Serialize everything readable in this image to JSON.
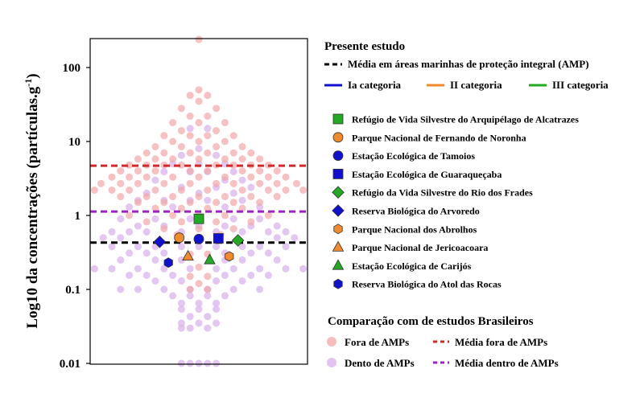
{
  "chart_data": {
    "type": "scatter",
    "ylabel": "Log10 da concentrações (partículas.g",
    "ylabel_superscript": "-1",
    "ylabel_close": ")",
    "yscale": "log",
    "ylim": [
      0.01,
      250
    ],
    "y_ticks": [
      {
        "value": 0.01,
        "label": "0.01"
      },
      {
        "value": 0.1,
        "label": "0.1"
      },
      {
        "value": 1,
        "label": "1"
      },
      {
        "value": 10,
        "label": "10"
      },
      {
        "value": 100,
        "label": "100"
      }
    ],
    "colors": {
      "fora": "#f4a6a6",
      "dentro": "#d9b3ee",
      "media_fora": "#d62728",
      "media_dentro": "#a020c8",
      "media_integral": "#000000",
      "cat_ia": "#1010d0",
      "cat_ii": "#f08a2a",
      "cat_iii": "#22aa22"
    },
    "mean_lines": [
      {
        "key": "media_fora",
        "value": 4.7
      },
      {
        "key": "media_dentro",
        "value": 1.13
      },
      {
        "key": "media_integral",
        "value": 0.43
      }
    ],
    "present_study": [
      {
        "name": "Refúgio de Vida Silvestre do Arquipélago de Alcatrazes",
        "marker": "square",
        "category": "cat_iii",
        "x": 0.5,
        "y": 0.9
      },
      {
        "name": "Parque Nacional de Fernando de Noronha",
        "marker": "circle",
        "category": "cat_ii",
        "x": 0.41,
        "y": 0.5
      },
      {
        "name": "Estação Ecológica de Tamoios",
        "marker": "circle",
        "category": "cat_ia",
        "x": 0.5,
        "y": 0.48
      },
      {
        "name": "Estação Ecológica de Guaraqueçaba",
        "marker": "square",
        "category": "cat_ia",
        "x": 0.59,
        "y": 0.49
      },
      {
        "name": "Refúgio da Vida Silvestre do Rio dos Frades",
        "marker": "diamond",
        "category": "cat_iii",
        "x": 0.68,
        "y": 0.46
      },
      {
        "name": "Reserva Biológica do Arvoredo",
        "marker": "diamond",
        "category": "cat_ia",
        "x": 0.32,
        "y": 0.44
      },
      {
        "name": "Parque Nacional dos Abrolhos",
        "marker": "hexagon",
        "category": "cat_ii",
        "x": 0.64,
        "y": 0.28
      },
      {
        "name": "Parque Nacional de Jericoacoara",
        "marker": "triangle",
        "category": "cat_ii",
        "x": 0.45,
        "y": 0.28
      },
      {
        "name": "Estação  Ecológica de Carijós",
        "marker": "triangle",
        "category": "cat_iii",
        "x": 0.55,
        "y": 0.25
      },
      {
        "name": "Reserva Biológica do Atol das Rocas",
        "marker": "hexagon",
        "category": "cat_ia",
        "x": 0.36,
        "y": 0.23
      }
    ],
    "brazilian_studies_fora": [
      {
        "x": 0.5,
        "y": 240
      },
      {
        "x": 0.5,
        "y": 50
      },
      {
        "x": 0.46,
        "y": 42
      },
      {
        "x": 0.54,
        "y": 42
      },
      {
        "x": 0.5,
        "y": 35
      },
      {
        "x": 0.42,
        "y": 28
      },
      {
        "x": 0.58,
        "y": 28
      },
      {
        "x": 0.46,
        "y": 22
      },
      {
        "x": 0.54,
        "y": 22
      },
      {
        "x": 0.38,
        "y": 18
      },
      {
        "x": 0.5,
        "y": 18
      },
      {
        "x": 0.62,
        "y": 18
      },
      {
        "x": 0.42,
        "y": 14
      },
      {
        "x": 0.58,
        "y": 14
      },
      {
        "x": 0.34,
        "y": 12
      },
      {
        "x": 0.46,
        "y": 12
      },
      {
        "x": 0.54,
        "y": 12
      },
      {
        "x": 0.66,
        "y": 12
      },
      {
        "x": 0.38,
        "y": 10
      },
      {
        "x": 0.5,
        "y": 10
      },
      {
        "x": 0.62,
        "y": 10
      },
      {
        "x": 0.3,
        "y": 8.5
      },
      {
        "x": 0.42,
        "y": 8.5
      },
      {
        "x": 0.58,
        "y": 8.5
      },
      {
        "x": 0.7,
        "y": 8.5
      },
      {
        "x": 0.26,
        "y": 7
      },
      {
        "x": 0.34,
        "y": 7
      },
      {
        "x": 0.46,
        "y": 7
      },
      {
        "x": 0.54,
        "y": 7
      },
      {
        "x": 0.66,
        "y": 7
      },
      {
        "x": 0.74,
        "y": 7
      },
      {
        "x": 0.22,
        "y": 5.8
      },
      {
        "x": 0.3,
        "y": 5.8
      },
      {
        "x": 0.38,
        "y": 5.8
      },
      {
        "x": 0.5,
        "y": 5.8
      },
      {
        "x": 0.62,
        "y": 5.8
      },
      {
        "x": 0.7,
        "y": 5.8
      },
      {
        "x": 0.78,
        "y": 5.8
      },
      {
        "x": 0.18,
        "y": 4.8
      },
      {
        "x": 0.26,
        "y": 4.8
      },
      {
        "x": 0.34,
        "y": 4.8
      },
      {
        "x": 0.42,
        "y": 4.8
      },
      {
        "x": 0.58,
        "y": 4.8
      },
      {
        "x": 0.66,
        "y": 4.8
      },
      {
        "x": 0.74,
        "y": 4.8
      },
      {
        "x": 0.82,
        "y": 4.8
      },
      {
        "x": 0.14,
        "y": 4
      },
      {
        "x": 0.22,
        "y": 4
      },
      {
        "x": 0.3,
        "y": 4
      },
      {
        "x": 0.46,
        "y": 4
      },
      {
        "x": 0.54,
        "y": 4
      },
      {
        "x": 0.7,
        "y": 4
      },
      {
        "x": 0.78,
        "y": 4
      },
      {
        "x": 0.86,
        "y": 4
      },
      {
        "x": 0.1,
        "y": 3.3
      },
      {
        "x": 0.18,
        "y": 3.3
      },
      {
        "x": 0.26,
        "y": 3.3
      },
      {
        "x": 0.38,
        "y": 3.3
      },
      {
        "x": 0.5,
        "y": 3.3
      },
      {
        "x": 0.62,
        "y": 3.3
      },
      {
        "x": 0.74,
        "y": 3.3
      },
      {
        "x": 0.82,
        "y": 3.3
      },
      {
        "x": 0.9,
        "y": 3.3
      },
      {
        "x": 0.05,
        "y": 2.7
      },
      {
        "x": 0.14,
        "y": 2.7
      },
      {
        "x": 0.22,
        "y": 2.7
      },
      {
        "x": 0.34,
        "y": 2.7
      },
      {
        "x": 0.46,
        "y": 2.7
      },
      {
        "x": 0.58,
        "y": 2.7
      },
      {
        "x": 0.66,
        "y": 2.7
      },
      {
        "x": 0.78,
        "y": 2.7
      },
      {
        "x": 0.86,
        "y": 2.7
      },
      {
        "x": 0.95,
        "y": 2.7
      },
      {
        "x": 0.02,
        "y": 2.2
      },
      {
        "x": 0.1,
        "y": 2.2
      },
      {
        "x": 0.18,
        "y": 2.2
      },
      {
        "x": 0.3,
        "y": 2.2
      },
      {
        "x": 0.42,
        "y": 2.2
      },
      {
        "x": 0.54,
        "y": 2.2
      },
      {
        "x": 0.7,
        "y": 2.2
      },
      {
        "x": 0.82,
        "y": 2.2
      },
      {
        "x": 0.9,
        "y": 2.2
      },
      {
        "x": 0.98,
        "y": 2.2
      },
      {
        "x": 0.14,
        "y": 1.8
      },
      {
        "x": 0.26,
        "y": 1.8
      },
      {
        "x": 0.38,
        "y": 1.8
      },
      {
        "x": 0.5,
        "y": 1.8
      },
      {
        "x": 0.62,
        "y": 1.8
      },
      {
        "x": 0.74,
        "y": 1.8
      },
      {
        "x": 0.86,
        "y": 1.8
      },
      {
        "x": 0.22,
        "y": 1.5
      },
      {
        "x": 0.34,
        "y": 1.5
      },
      {
        "x": 0.46,
        "y": 1.5
      },
      {
        "x": 0.58,
        "y": 1.5
      },
      {
        "x": 0.66,
        "y": 1.5
      },
      {
        "x": 0.78,
        "y": 1.5
      },
      {
        "x": 0.3,
        "y": 1.25
      },
      {
        "x": 0.42,
        "y": 1.25
      },
      {
        "x": 0.54,
        "y": 1.25
      },
      {
        "x": 0.7,
        "y": 1.25
      },
      {
        "x": 0.18,
        "y": 1.0
      },
      {
        "x": 0.38,
        "y": 1.0
      },
      {
        "x": 0.5,
        "y": 1.0
      },
      {
        "x": 0.62,
        "y": 1.0
      },
      {
        "x": 0.82,
        "y": 1.0
      },
      {
        "x": 0.26,
        "y": 0.82
      },
      {
        "x": 0.42,
        "y": 0.82
      },
      {
        "x": 0.58,
        "y": 0.82
      },
      {
        "x": 0.74,
        "y": 0.82
      },
      {
        "x": 0.34,
        "y": 0.66
      },
      {
        "x": 0.5,
        "y": 0.66
      },
      {
        "x": 0.66,
        "y": 0.66
      },
      {
        "x": 0.4,
        "y": 0.55
      },
      {
        "x": 0.6,
        "y": 0.55
      },
      {
        "x": 0.46,
        "y": 0.3
      },
      {
        "x": 0.54,
        "y": 0.3
      },
      {
        "x": 0.5,
        "y": 0.2
      },
      {
        "x": 0.46,
        "y": 0.15
      },
      {
        "x": 0.54,
        "y": 0.15
      },
      {
        "x": 0.5,
        "y": 0.12
      },
      {
        "x": 0.46,
        "y": 0.1
      },
      {
        "x": 0.54,
        "y": 0.1
      }
    ],
    "brazilian_studies_dentro": [
      {
        "x": 0.46,
        "y": 15
      },
      {
        "x": 0.54,
        "y": 15
      },
      {
        "x": 0.5,
        "y": 8
      },
      {
        "x": 0.42,
        "y": 6.5
      },
      {
        "x": 0.58,
        "y": 6.5
      },
      {
        "x": 0.38,
        "y": 5
      },
      {
        "x": 0.5,
        "y": 5
      },
      {
        "x": 0.62,
        "y": 5
      },
      {
        "x": 0.34,
        "y": 3.9
      },
      {
        "x": 0.46,
        "y": 3.9
      },
      {
        "x": 0.54,
        "y": 3.9
      },
      {
        "x": 0.66,
        "y": 3.9
      },
      {
        "x": 0.62,
        "y": 3.0
      },
      {
        "x": 0.7,
        "y": 3.0
      },
      {
        "x": 0.3,
        "y": 3.0
      },
      {
        "x": 0.42,
        "y": 2.4
      },
      {
        "x": 0.58,
        "y": 2.4
      },
      {
        "x": 0.74,
        "y": 2.4
      },
      {
        "x": 0.26,
        "y": 2.0
      },
      {
        "x": 0.5,
        "y": 2.0
      },
      {
        "x": 0.66,
        "y": 2.0
      },
      {
        "x": 0.34,
        "y": 1.6
      },
      {
        "x": 0.46,
        "y": 1.6
      },
      {
        "x": 0.54,
        "y": 1.6
      },
      {
        "x": 0.7,
        "y": 1.6
      },
      {
        "x": 0.22,
        "y": 1.6
      },
      {
        "x": 0.38,
        "y": 1.3
      },
      {
        "x": 0.62,
        "y": 1.3
      },
      {
        "x": 0.78,
        "y": 1.3
      },
      {
        "x": 0.18,
        "y": 1.3
      },
      {
        "x": 0.3,
        "y": 0.9
      },
      {
        "x": 0.46,
        "y": 0.9
      },
      {
        "x": 0.66,
        "y": 0.9
      },
      {
        "x": 0.78,
        "y": 0.9
      },
      {
        "x": 0.14,
        "y": 0.9
      },
      {
        "x": 0.22,
        "y": 0.72
      },
      {
        "x": 0.34,
        "y": 0.72
      },
      {
        "x": 0.5,
        "y": 0.72
      },
      {
        "x": 0.62,
        "y": 0.72
      },
      {
        "x": 0.74,
        "y": 0.72
      },
      {
        "x": 0.86,
        "y": 0.72
      },
      {
        "x": 0.1,
        "y": 0.6
      },
      {
        "x": 0.18,
        "y": 0.6
      },
      {
        "x": 0.26,
        "y": 0.6
      },
      {
        "x": 0.42,
        "y": 0.6
      },
      {
        "x": 0.58,
        "y": 0.6
      },
      {
        "x": 0.7,
        "y": 0.6
      },
      {
        "x": 0.82,
        "y": 0.6
      },
      {
        "x": 0.9,
        "y": 0.6
      },
      {
        "x": 0.06,
        "y": 0.5
      },
      {
        "x": 0.14,
        "y": 0.5
      },
      {
        "x": 0.86,
        "y": 0.5
      },
      {
        "x": 0.94,
        "y": 0.5
      },
      {
        "x": 0.1,
        "y": 0.38
      },
      {
        "x": 0.22,
        "y": 0.38
      },
      {
        "x": 0.3,
        "y": 0.38
      },
      {
        "x": 0.42,
        "y": 0.38
      },
      {
        "x": 0.5,
        "y": 0.38
      },
      {
        "x": 0.58,
        "y": 0.38
      },
      {
        "x": 0.7,
        "y": 0.38
      },
      {
        "x": 0.78,
        "y": 0.38
      },
      {
        "x": 0.9,
        "y": 0.38
      },
      {
        "x": 0.18,
        "y": 0.31
      },
      {
        "x": 0.26,
        "y": 0.31
      },
      {
        "x": 0.34,
        "y": 0.31
      },
      {
        "x": 0.62,
        "y": 0.31
      },
      {
        "x": 0.74,
        "y": 0.31
      },
      {
        "x": 0.82,
        "y": 0.31
      },
      {
        "x": 0.14,
        "y": 0.25
      },
      {
        "x": 0.3,
        "y": 0.25
      },
      {
        "x": 0.42,
        "y": 0.25
      },
      {
        "x": 0.62,
        "y": 0.25
      },
      {
        "x": 0.7,
        "y": 0.25
      },
      {
        "x": 0.86,
        "y": 0.25
      },
      {
        "x": 0.02,
        "y": 0.19
      },
      {
        "x": 0.1,
        "y": 0.19
      },
      {
        "x": 0.22,
        "y": 0.19
      },
      {
        "x": 0.34,
        "y": 0.19
      },
      {
        "x": 0.46,
        "y": 0.19
      },
      {
        "x": 0.58,
        "y": 0.19
      },
      {
        "x": 0.66,
        "y": 0.19
      },
      {
        "x": 0.78,
        "y": 0.19
      },
      {
        "x": 0.9,
        "y": 0.19
      },
      {
        "x": 0.98,
        "y": 0.19
      },
      {
        "x": 0.18,
        "y": 0.155
      },
      {
        "x": 0.26,
        "y": 0.155
      },
      {
        "x": 0.38,
        "y": 0.155
      },
      {
        "x": 0.62,
        "y": 0.155
      },
      {
        "x": 0.74,
        "y": 0.155
      },
      {
        "x": 0.82,
        "y": 0.155
      },
      {
        "x": 0.3,
        "y": 0.13
      },
      {
        "x": 0.42,
        "y": 0.13
      },
      {
        "x": 0.58,
        "y": 0.13
      },
      {
        "x": 0.7,
        "y": 0.13
      },
      {
        "x": 0.14,
        "y": 0.1
      },
      {
        "x": 0.22,
        "y": 0.1
      },
      {
        "x": 0.34,
        "y": 0.1
      },
      {
        "x": 0.46,
        "y": 0.1
      },
      {
        "x": 0.54,
        "y": 0.1
      },
      {
        "x": 0.66,
        "y": 0.1
      },
      {
        "x": 0.78,
        "y": 0.1
      },
      {
        "x": 0.38,
        "y": 0.082
      },
      {
        "x": 0.46,
        "y": 0.082
      },
      {
        "x": 0.54,
        "y": 0.082
      },
      {
        "x": 0.62,
        "y": 0.082
      },
      {
        "x": 0.42,
        "y": 0.065
      },
      {
        "x": 0.5,
        "y": 0.065
      },
      {
        "x": 0.58,
        "y": 0.065
      },
      {
        "x": 0.42,
        "y": 0.054
      },
      {
        "x": 0.5,
        "y": 0.054
      },
      {
        "x": 0.58,
        "y": 0.054
      },
      {
        "x": 0.46,
        "y": 0.043
      },
      {
        "x": 0.54,
        "y": 0.043
      },
      {
        "x": 0.42,
        "y": 0.035
      },
      {
        "x": 0.5,
        "y": 0.035
      },
      {
        "x": 0.58,
        "y": 0.035
      },
      {
        "x": 0.42,
        "y": 0.03
      },
      {
        "x": 0.46,
        "y": 0.03
      },
      {
        "x": 0.54,
        "y": 0.03
      },
      {
        "x": 0.42,
        "y": 0.01
      },
      {
        "x": 0.46,
        "y": 0.01
      },
      {
        "x": 0.5,
        "y": 0.01
      },
      {
        "x": 0.54,
        "y": 0.01
      },
      {
        "x": 0.58,
        "y": 0.01
      }
    ],
    "legend": {
      "present_title": "Presente estudo",
      "integral_label": "Média em áreas marinhas de proteção integral (AMP)",
      "cat_ia_label": "Ia categoria",
      "cat_ii_label": "II categoria",
      "cat_iii_label": "III categoria",
      "comparison_title": "Comparação com de estudos Brasileiros",
      "fora_label": "Fora de AMPs",
      "dentro_label": "Dento de AMPs",
      "media_fora_label": "Média fora de AMPs",
      "media_dentro_label": "Média dentro de AMPs"
    }
  }
}
